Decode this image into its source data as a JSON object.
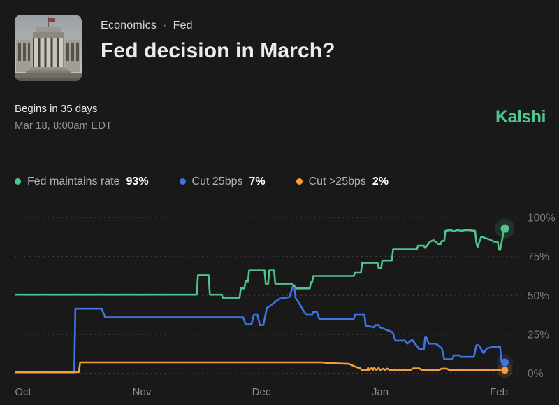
{
  "header": {
    "breadcrumb": {
      "category": "Economics",
      "separator": "·",
      "subcategory": "Fed"
    },
    "title": "Fed decision in March?",
    "begins_in": "Begins in 35 days",
    "event_datetime": "Mar 18, 8:00am EDT",
    "brand": "Kalshi",
    "avatar_icon": "federal-reserve-building-photo"
  },
  "legend": [
    {
      "label": "Fed maintains rate",
      "value": "93%",
      "color": "#4fc38a"
    },
    {
      "label": "Cut 25bps",
      "value": "7%",
      "color": "#3e74e6"
    },
    {
      "label": "Cut >25bps",
      "value": "2%",
      "color": "#f0a03c"
    }
  ],
  "colors": {
    "background": "#191919",
    "divider": "#2c2c2c",
    "grid_dots": "#4a4a4a",
    "y_tick_text": "#7d7d7d",
    "x_tick_text": "#8f8f8f",
    "brand_green": "#4ec690",
    "series_green": "#4fc38a",
    "series_blue": "#3e74e6",
    "series_orange": "#f0a03c"
  },
  "chart_data": {
    "type": "line",
    "title": "Fed decision in March? — outcome probability history",
    "x_axis": {
      "unit": "months since Oct 1",
      "tick_positions": [
        0,
        1,
        2,
        3,
        4
      ],
      "tick_labels": [
        "Oct",
        "Nov",
        "Dec",
        "Jan",
        "Feb"
      ],
      "range": [
        -0.065,
        4.2
      ]
    },
    "y_axis": {
      "unit": "%",
      "ticks": [
        0,
        25,
        50,
        75,
        100
      ],
      "tick_labels": [
        "0%",
        "25%",
        "50%",
        "75%",
        "100%"
      ],
      "range": [
        0,
        100
      ]
    },
    "grid": "dotted-horizontal",
    "legend_position": "top-left-above-chart",
    "series": [
      {
        "name": "Fed maintains rate",
        "color": "#4fc38a",
        "current_value": 93,
        "points": [
          [
            -0.06,
            50.5
          ],
          [
            1.46,
            50.5
          ],
          [
            1.47,
            63
          ],
          [
            1.56,
            63
          ],
          [
            1.57,
            50.5
          ],
          [
            1.67,
            50.5
          ],
          [
            1.68,
            48.5
          ],
          [
            1.82,
            48.5
          ],
          [
            1.83,
            54.5
          ],
          [
            1.86,
            54.5
          ],
          [
            1.87,
            59
          ],
          [
            1.89,
            59
          ],
          [
            1.9,
            66
          ],
          [
            2.03,
            66
          ],
          [
            2.04,
            57.5
          ],
          [
            2.06,
            57.5
          ],
          [
            2.07,
            66
          ],
          [
            2.11,
            66
          ],
          [
            2.12,
            57.5
          ],
          [
            2.26,
            57.5
          ],
          [
            2.3,
            54.5
          ],
          [
            2.41,
            54.5
          ],
          [
            2.42,
            58.5
          ],
          [
            2.43,
            58.5
          ],
          [
            2.44,
            62.5
          ],
          [
            2.78,
            62.5
          ],
          [
            2.79,
            64.5
          ],
          [
            2.84,
            64.5
          ],
          [
            2.85,
            71
          ],
          [
            2.98,
            71
          ],
          [
            2.99,
            67.5
          ],
          [
            3.01,
            67.5
          ],
          [
            3.02,
            72.5
          ],
          [
            3.1,
            72.5
          ],
          [
            3.11,
            79.5
          ],
          [
            3.31,
            79.5
          ],
          [
            3.32,
            82
          ],
          [
            3.37,
            82
          ],
          [
            3.38,
            80.5
          ],
          [
            3.42,
            84.5
          ],
          [
            3.45,
            85.5
          ],
          [
            3.49,
            83
          ],
          [
            3.51,
            83
          ],
          [
            3.52,
            85
          ],
          [
            3.54,
            85
          ],
          [
            3.55,
            91.5
          ],
          [
            3.6,
            92
          ],
          [
            3.62,
            91
          ],
          [
            3.65,
            92
          ],
          [
            3.68,
            91.5
          ],
          [
            3.73,
            92
          ],
          [
            3.8,
            91.5
          ],
          [
            3.81,
            84
          ],
          [
            3.82,
            81
          ],
          [
            3.85,
            87.5
          ],
          [
            3.86,
            87.5
          ],
          [
            3.92,
            86
          ],
          [
            3.96,
            84.5
          ],
          [
            3.99,
            84.5
          ],
          [
            4.0,
            79.5
          ],
          [
            4.01,
            79
          ],
          [
            4.02,
            83
          ],
          [
            4.04,
            91
          ],
          [
            4.05,
            93
          ]
        ]
      },
      {
        "name": "Cut 25bps",
        "color": "#3e74e6",
        "current_value": 7,
        "points": [
          [
            -0.06,
            0.5
          ],
          [
            0.43,
            0.5
          ],
          [
            0.44,
            41.5
          ],
          [
            0.66,
            41.5
          ],
          [
            0.69,
            36
          ],
          [
            1.85,
            36
          ],
          [
            1.87,
            31.5
          ],
          [
            1.92,
            31.5
          ],
          [
            1.94,
            37.5
          ],
          [
            1.97,
            37.5
          ],
          [
            1.99,
            31
          ],
          [
            2.02,
            31
          ],
          [
            2.05,
            42
          ],
          [
            2.09,
            44
          ],
          [
            2.13,
            46.5
          ],
          [
            2.16,
            48
          ],
          [
            2.21,
            48.5
          ],
          [
            2.24,
            49
          ],
          [
            2.27,
            56.5
          ],
          [
            2.28,
            56.5
          ],
          [
            2.29,
            48.5
          ],
          [
            2.32,
            45
          ],
          [
            2.35,
            41
          ],
          [
            2.38,
            37.5
          ],
          [
            2.43,
            37.5
          ],
          [
            2.44,
            39.5
          ],
          [
            2.47,
            39.5
          ],
          [
            2.49,
            35
          ],
          [
            2.78,
            35
          ],
          [
            2.79,
            37.5
          ],
          [
            2.87,
            37.5
          ],
          [
            2.88,
            30.5
          ],
          [
            2.95,
            29.5
          ],
          [
            2.96,
            31
          ],
          [
            2.99,
            31
          ],
          [
            3.0,
            29.5
          ],
          [
            3.1,
            26.5
          ],
          [
            3.11,
            25.5
          ],
          [
            3.13,
            21
          ],
          [
            3.21,
            21
          ],
          [
            3.23,
            19
          ],
          [
            3.27,
            21.5
          ],
          [
            3.33,
            15.5
          ],
          [
            3.37,
            15.5
          ],
          [
            3.38,
            23
          ],
          [
            3.39,
            23
          ],
          [
            3.41,
            19
          ],
          [
            3.47,
            19
          ],
          [
            3.52,
            16
          ],
          [
            3.54,
            9
          ],
          [
            3.61,
            9
          ],
          [
            3.62,
            11.5
          ],
          [
            3.67,
            11.5
          ],
          [
            3.68,
            10.5
          ],
          [
            3.79,
            10.5
          ],
          [
            3.81,
            18
          ],
          [
            3.83,
            18
          ],
          [
            3.87,
            13
          ],
          [
            3.9,
            16
          ],
          [
            3.95,
            17
          ],
          [
            3.99,
            17
          ],
          [
            4.01,
            17
          ],
          [
            4.02,
            8
          ],
          [
            4.05,
            7
          ]
        ]
      },
      {
        "name": "Cut >25bps",
        "color": "#f0a03c",
        "current_value": 2,
        "points": [
          [
            -0.06,
            0.8
          ],
          [
            0.47,
            0.8
          ],
          [
            0.48,
            7
          ],
          [
            2.51,
            7
          ],
          [
            2.57,
            6.5
          ],
          [
            2.74,
            6
          ],
          [
            2.8,
            4
          ],
          [
            2.83,
            3.5
          ],
          [
            2.85,
            2
          ],
          [
            2.89,
            2
          ],
          [
            2.9,
            3.5
          ],
          [
            2.91,
            2
          ],
          [
            2.93,
            3.5
          ],
          [
            2.94,
            2
          ],
          [
            2.95,
            3.5
          ],
          [
            2.97,
            2
          ],
          [
            2.99,
            3.5
          ],
          [
            3.0,
            2
          ],
          [
            3.03,
            3
          ],
          [
            3.04,
            2
          ],
          [
            3.06,
            3
          ],
          [
            3.08,
            2.2
          ],
          [
            3.26,
            2.2
          ],
          [
            3.28,
            3.2
          ],
          [
            3.33,
            3.2
          ],
          [
            3.35,
            2.2
          ],
          [
            3.5,
            2.2
          ],
          [
            3.52,
            3
          ],
          [
            3.56,
            3
          ],
          [
            3.58,
            2.2
          ],
          [
            4.0,
            2.2
          ],
          [
            4.02,
            1.8
          ],
          [
            4.05,
            2
          ]
        ]
      }
    ]
  }
}
